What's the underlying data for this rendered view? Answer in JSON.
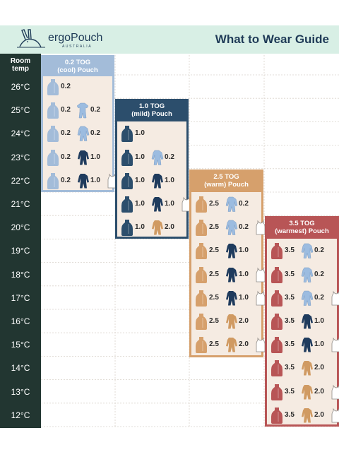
{
  "brand": {
    "name": "ergoPouch",
    "tagline": "AUSTRALIA"
  },
  "title": "What to Wear Guide",
  "room_temp_label": [
    "Room",
    "temp"
  ],
  "temperatures": [
    "26°C",
    "25°C",
    "24°C",
    "23°C",
    "22°C",
    "21°C",
    "20°C",
    "19°C",
    "18°C",
    "17°C",
    "16°C",
    "15°C",
    "14°C",
    "13°C",
    "12°C"
  ],
  "colors": {
    "header_bg": "#d8efe5",
    "temp_column": "#223631",
    "tog_0_2": "#a3bcd9",
    "tog_1_0": "#2c4e6c",
    "tog_2_5": "#d6a06c",
    "tog_3_5": "#b85556",
    "card_bg": "#f5ebe2"
  },
  "icon_legend": {
    "sleepbag": "sleeping bag icon",
    "suit": "long sleeve romper icon",
    "shortsuit": "short sleeve romper icon",
    "vest": "singlet icon"
  },
  "panels": [
    {
      "id": "tog02",
      "heading": [
        "0.2 TOG",
        "(cool) Pouch"
      ],
      "color": "#a3bcd9",
      "rows": [
        {
          "temp": "26°C",
          "items": [
            [
              "sleepbag",
              "0.2"
            ]
          ]
        },
        {
          "temp": "25°C",
          "items": [
            [
              "sleepbag",
              "0.2"
            ],
            [
              "shortsuit",
              "0.2"
            ]
          ]
        },
        {
          "temp": "24°C",
          "items": [
            [
              "sleepbag",
              "0.2"
            ],
            [
              "suitlight",
              "0.2"
            ]
          ]
        },
        {
          "temp": "23°C",
          "items": [
            [
              "sleepbag",
              "0.2"
            ],
            [
              "suitdark",
              "1.0"
            ]
          ]
        },
        {
          "temp": "22°C",
          "items": [
            [
              "sleepbag",
              "0.2"
            ],
            [
              "suitdark",
              "1.0"
            ],
            [
              "vest",
              ""
            ]
          ]
        }
      ]
    },
    {
      "id": "tog10",
      "heading": [
        "1.0 TOG",
        "(mild) Pouch"
      ],
      "color": "#2c4e6c",
      "rows": [
        {
          "temp": "24°C",
          "items": [
            [
              "sleepbag",
              "1.0"
            ]
          ]
        },
        {
          "temp": "23°C",
          "items": [
            [
              "sleepbag",
              "1.0"
            ],
            [
              "suitlight",
              "0.2"
            ]
          ]
        },
        {
          "temp": "22°C",
          "items": [
            [
              "sleepbag",
              "1.0"
            ],
            [
              "suitdark",
              "1.0"
            ]
          ]
        },
        {
          "temp": "21°C",
          "items": [
            [
              "sleepbag",
              "1.0"
            ],
            [
              "suitdark",
              "1.0"
            ],
            [
              "vest",
              ""
            ]
          ]
        },
        {
          "temp": "20°C",
          "items": [
            [
              "sleepbag",
              "1.0"
            ],
            [
              "suittan",
              "2.0"
            ]
          ]
        }
      ]
    },
    {
      "id": "tog25",
      "heading": [
        "2.5 TOG",
        "(warm) Pouch"
      ],
      "color": "#d6a06c",
      "rows": [
        {
          "temp": "21°C",
          "items": [
            [
              "sleepbag",
              "2.5"
            ],
            [
              "suitlight",
              "0.2"
            ]
          ]
        },
        {
          "temp": "20°C",
          "items": [
            [
              "sleepbag",
              "2.5"
            ],
            [
              "suitlight",
              "0.2"
            ],
            [
              "vest",
              ""
            ]
          ]
        },
        {
          "temp": "19°C",
          "items": [
            [
              "sleepbag",
              "2.5"
            ],
            [
              "suitdark",
              "1.0"
            ]
          ]
        },
        {
          "temp": "18°C",
          "items": [
            [
              "sleepbag",
              "2.5"
            ],
            [
              "suitdark",
              "1.0"
            ],
            [
              "vest",
              ""
            ]
          ]
        },
        {
          "temp": "17°C",
          "items": [
            [
              "sleepbag",
              "2.5"
            ],
            [
              "suitdark",
              "1.0"
            ],
            [
              "vest",
              ""
            ]
          ]
        },
        {
          "temp": "16°C",
          "items": [
            [
              "sleepbag",
              "2.5"
            ],
            [
              "suittan",
              "2.0"
            ]
          ]
        },
        {
          "temp": "15°C",
          "items": [
            [
              "sleepbag",
              "2.5"
            ],
            [
              "suittan",
              "2.0"
            ],
            [
              "vest",
              ""
            ]
          ]
        }
      ]
    },
    {
      "id": "tog35",
      "heading": [
        "3.5 TOG",
        "(warmest) Pouch"
      ],
      "color": "#b85556",
      "rows": [
        {
          "temp": "19°C",
          "items": [
            [
              "sleepbag",
              "3.5"
            ],
            [
              "suitlight",
              "0.2"
            ]
          ]
        },
        {
          "temp": "18°C",
          "items": [
            [
              "sleepbag",
              "3.5"
            ],
            [
              "suitlight",
              "0.2"
            ]
          ]
        },
        {
          "temp": "17°C",
          "items": [
            [
              "sleepbag",
              "3.5"
            ],
            [
              "suitlight",
              "0.2"
            ],
            [
              "vest",
              ""
            ]
          ]
        },
        {
          "temp": "16°C",
          "items": [
            [
              "sleepbag",
              "3.5"
            ],
            [
              "suitdark",
              "1.0"
            ]
          ]
        },
        {
          "temp": "15°C",
          "items": [
            [
              "sleepbag",
              "3.5"
            ],
            [
              "suitdark",
              "1.0"
            ],
            [
              "vest",
              ""
            ]
          ]
        },
        {
          "temp": "14°C",
          "items": [
            [
              "sleepbag",
              "3.5"
            ],
            [
              "suittan",
              "2.0"
            ]
          ]
        },
        {
          "temp": "13°C",
          "items": [
            [
              "sleepbag",
              "3.5"
            ],
            [
              "suittan",
              "2.0"
            ],
            [
              "vest",
              ""
            ]
          ]
        },
        {
          "temp": "12°C",
          "items": [
            [
              "sleepbag",
              "3.5"
            ],
            [
              "suittan",
              "2.0"
            ],
            [
              "vest",
              ""
            ]
          ]
        }
      ]
    }
  ]
}
